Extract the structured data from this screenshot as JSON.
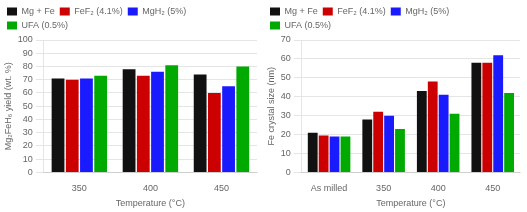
{
  "chart_data": [
    {
      "type": "bar",
      "xlabel": "Temperature (°C)",
      "ylabel": "Mg₂FeH₆ yield (wt. %)",
      "categories": [
        "350",
        "400",
        "450"
      ],
      "series": [
        {
          "name": "Mg + Fe",
          "color": "#111111",
          "values": [
            71,
            78,
            74
          ]
        },
        {
          "name": "FeF₂ (4.1%)",
          "color": "#cc0000",
          "values": [
            70,
            73,
            60
          ]
        },
        {
          "name": "MgH₂ (5%)",
          "color": "#1a1aff",
          "values": [
            71,
            76,
            65
          ]
        },
        {
          "name": "UFA (0.5%)",
          "color": "#00aa00",
          "values": [
            73,
            81,
            80
          ]
        }
      ],
      "ylim": [
        0,
        100
      ],
      "yticks": [
        0,
        10,
        20,
        30,
        40,
        50,
        60,
        70,
        80,
        90,
        100
      ],
      "grid": true,
      "legend": "upper left"
    },
    {
      "type": "bar",
      "xlabel": "Temperature (°C)",
      "ylabel": "Fe crystal size (nm)",
      "categories": [
        "As milled",
        "350",
        "400",
        "450"
      ],
      "series": [
        {
          "name": "Mg + Fe",
          "color": "#111111",
          "values": [
            21,
            28,
            43,
            58
          ]
        },
        {
          "name": "FeF₂ (4.1%)",
          "color": "#cc0000",
          "values": [
            19.5,
            32,
            48,
            58
          ]
        },
        {
          "name": "MgH₂ (5%)",
          "color": "#1a1aff",
          "values": [
            19,
            30,
            41,
            62
          ]
        },
        {
          "name": "UFA (0.5%)",
          "color": "#00aa00",
          "values": [
            19,
            23,
            31,
            42
          ]
        }
      ],
      "ylim": [
        0,
        70
      ],
      "yticks": [
        0,
        10,
        20,
        30,
        40,
        50,
        60,
        70
      ],
      "grid": true,
      "legend": "upper left"
    }
  ]
}
